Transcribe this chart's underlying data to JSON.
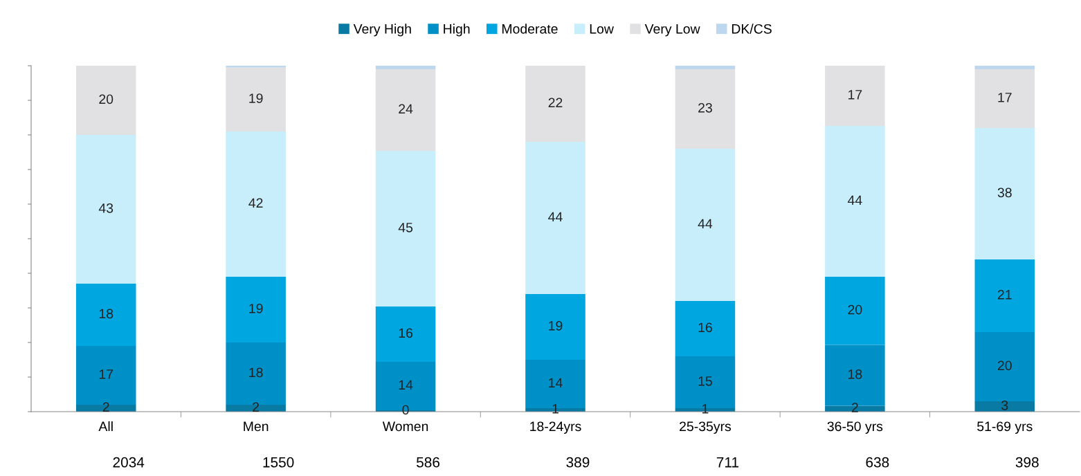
{
  "chart_data": {
    "type": "bar",
    "stacked": true,
    "categories": [
      "All",
      "Men",
      "Women",
      "18-24yrs",
      "25-35yrs",
      "36-50 yrs",
      "51-69 yrs"
    ],
    "series": [
      {
        "name": "Very High",
        "color": "#087aa3",
        "values": [
          2,
          2,
          0.4,
          1,
          1,
          1.7,
          3
        ],
        "value_labels": [
          "2",
          "2",
          "0",
          "1",
          "1",
          "2",
          "3"
        ]
      },
      {
        "name": "High",
        "color": "#0090c8",
        "values": [
          17,
          18,
          14,
          14,
          15,
          17.6,
          20
        ],
        "value_labels": [
          "17",
          "18",
          "14",
          "14",
          "15",
          "18",
          "20"
        ]
      },
      {
        "name": "Moderate",
        "color": "#00a6e0",
        "values": [
          18,
          19,
          16,
          19,
          16,
          19.7,
          21
        ],
        "value_labels": [
          "18",
          "19",
          "16",
          "19",
          "16",
          "20",
          "21"
        ]
      },
      {
        "name": "Low",
        "color": "#c8eefb",
        "values": [
          43,
          42,
          45,
          44,
          44,
          43.6,
          38
        ],
        "value_labels": [
          "43",
          "42",
          "45",
          "44",
          "44",
          "44",
          "38"
        ]
      },
      {
        "name": "Very Low",
        "color": "#e1e1e3",
        "values": [
          20,
          18.5,
          23.6,
          22,
          23,
          17.4,
          17
        ],
        "value_labels": [
          "20",
          "19",
          "24",
          "22",
          "23",
          "17",
          "17"
        ]
      },
      {
        "name": "DK/CS",
        "color": "#bdd7ee",
        "values": [
          0,
          0.5,
          1,
          0,
          1,
          0,
          1
        ]
      }
    ],
    "ylim": [
      0,
      100
    ],
    "yticks": [
      {
        "value": 0,
        "label": null
      },
      {
        "value": 10,
        "label": null
      },
      {
        "value": 20,
        "label": null
      },
      {
        "value": 30,
        "label": null
      },
      {
        "value": 40,
        "label": null
      },
      {
        "value": 50,
        "label": null
      },
      {
        "value": 60,
        "label": null
      },
      {
        "value": 70,
        "label": null
      },
      {
        "value": 80,
        "label": null
      },
      {
        "value": 90,
        "label": null
      },
      {
        "value": 100,
        "label": null
      }
    ],
    "tick_labels": "x",
    "legend": "top",
    "grid": false,
    "annotations": [
      "2034",
      "1550",
      "586",
      "389",
      "711",
      "638",
      "398"
    ]
  }
}
